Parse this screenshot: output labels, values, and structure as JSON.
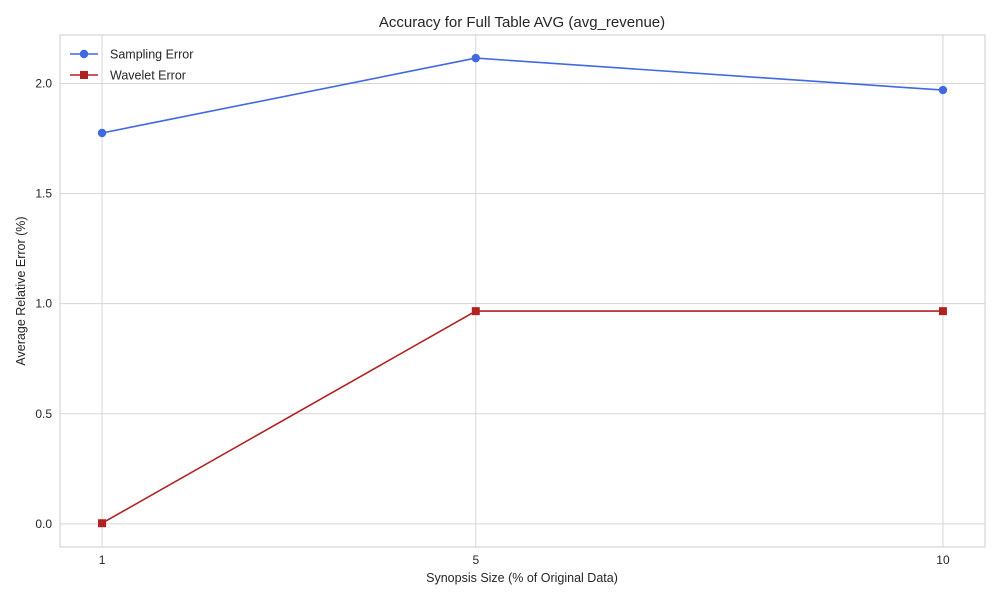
{
  "chart_data": {
    "type": "line",
    "title": "Accuracy for Full Table AVG (avg_revenue)",
    "xlabel": "Synopsis Size (% of Original Data)",
    "ylabel": "Average Relative Error (%)",
    "x": [
      1,
      5,
      10
    ],
    "x_ticks": [
      "1",
      "5",
      "10"
    ],
    "y_ticks": [
      "0.0",
      "0.5",
      "1.0",
      "1.5",
      "2.0"
    ],
    "ylim": [
      -0.105,
      2.22
    ],
    "xlim": [
      0.55,
      10.45
    ],
    "grid": true,
    "legend_position": "upper-left",
    "series": [
      {
        "name": "Sampling Error",
        "values": [
          1.775,
          2.115,
          1.97
        ],
        "color": "#4169e1",
        "marker": "circle"
      },
      {
        "name": "Wavelet Error",
        "values": [
          0.003,
          0.966,
          0.966
        ],
        "color": "#b22222",
        "marker": "square"
      }
    ]
  }
}
